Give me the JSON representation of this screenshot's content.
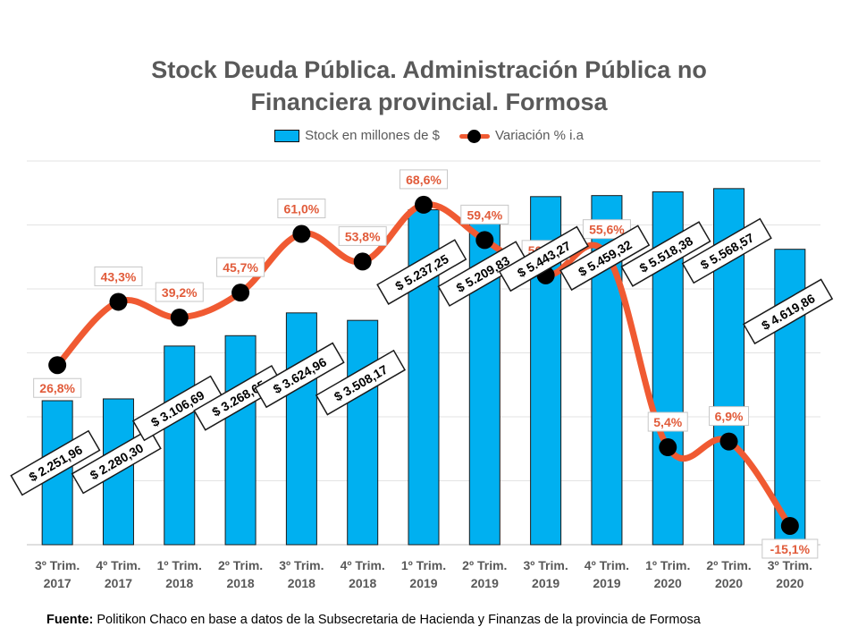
{
  "chart_data": {
    "type": "bar",
    "title_lines": [
      "Stock Deuda Pública. Administración Pública no",
      "Financiera provincial. Formosa"
    ],
    "categories": [
      [
        "3º Trim.",
        "2017"
      ],
      [
        "4º Trim.",
        "2017"
      ],
      [
        "1º Trim.",
        "2018"
      ],
      [
        "2º Trim.",
        "2018"
      ],
      [
        "3º Trim.",
        "2018"
      ],
      [
        "4º Trim.",
        "2018"
      ],
      [
        "1º Trim.",
        "2019"
      ],
      [
        "2º Trim.",
        "2019"
      ],
      [
        "3º Trim.",
        "2019"
      ],
      [
        "4º Trim.",
        "2019"
      ],
      [
        "1º Trim.",
        "2020"
      ],
      [
        "2º Trim.",
        "2020"
      ],
      [
        "3º Trim.",
        "2020"
      ]
    ],
    "series": [
      {
        "name": "Stock en millones de $",
        "type": "bar",
        "color": "#00B0F0",
        "values": [
          2251.96,
          2280.3,
          3106.69,
          3268.65,
          3624.96,
          3508.17,
          5237.25,
          5209.83,
          5443.27,
          5459.32,
          5518.38,
          5568.57,
          4619.86
        ],
        "labels": [
          "$ 2.251,96",
          "$ 2.280,30",
          "$ 3.106,69",
          "$ 3.268,65",
          "$ 3.624,96",
          "$ 3.508,17",
          "$ 5.237,25",
          "$ 5.209,83",
          "$ 5.443,27",
          "$ 5.459,32",
          "$ 5.518,38",
          "$ 5.568,57",
          "$ 4.619,86"
        ]
      },
      {
        "name": "Variación % i.a",
        "type": "line",
        "color": "#F05A32",
        "values": [
          26.8,
          43.3,
          39.2,
          45.7,
          61.0,
          53.8,
          68.6,
          59.4,
          50.2,
          55.6,
          5.4,
          6.9,
          -15.1
        ],
        "labels": [
          "26,8%",
          "43,3%",
          "39,2%",
          "45,7%",
          "61,0%",
          "53,8%",
          "68,6%",
          "59,4%",
          "50,2%",
          "55,6%",
          "5,4%",
          "6,9%",
          "-15,1%"
        ]
      }
    ],
    "bar_ylim": [
      0,
      6000
    ],
    "line_ylim": [
      -20,
      80
    ],
    "grid": true,
    "legend_position": "top"
  },
  "source": {
    "label": "Fuente:",
    "text": "Politikon Chaco en base a datos de la Subsecretaria de Hacienda y Finanzas de la provincia de Formosa"
  }
}
